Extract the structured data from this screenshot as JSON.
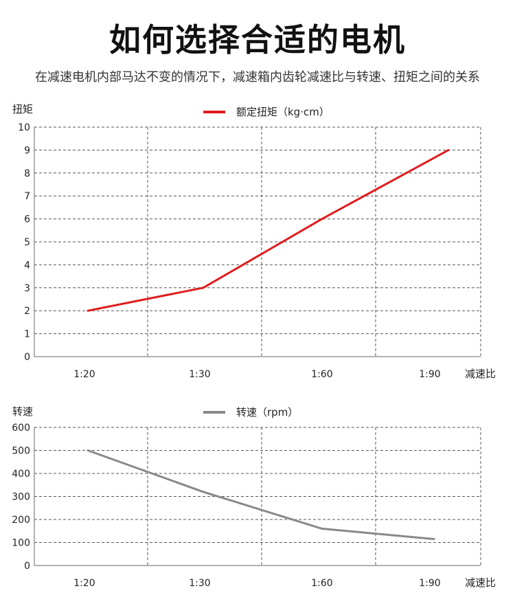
{
  "header": {
    "title": "如何选择合适的电机",
    "subtitle": "在减速电机内部马达不变的情况下，减速箱内齿轮减速比与转速、扭矩之间的关系"
  },
  "chart_data": [
    {
      "type": "line",
      "ylabel": "扭矩",
      "xlabel": "减速比",
      "categories": [
        "1:20",
        "1:30",
        "1:60",
        "1:90"
      ],
      "series": [
        {
          "name": "额定扭矩（kg·cm）",
          "values": [
            2,
            3,
            6,
            9
          ],
          "color": "#e01b1b"
        }
      ],
      "ylim": [
        0,
        10
      ],
      "yticks": [
        "0",
        "1",
        "2",
        "3",
        "4",
        "5",
        "6",
        "7",
        "8",
        "9",
        "10"
      ],
      "legend": "top-center",
      "grid": true
    },
    {
      "type": "line",
      "ylabel": "转速",
      "xlabel": "减速比",
      "categories": [
        "1:20",
        "1:30",
        "1:60",
        "1:90"
      ],
      "series": [
        {
          "name": "转速（rpm）",
          "values": [
            500,
            320,
            160,
            115
          ],
          "color": "#888888"
        }
      ],
      "ylim": [
        0,
        600
      ],
      "yticks": [
        "0",
        "100",
        "200",
        "300",
        "400",
        "500",
        "600"
      ],
      "legend": "top-center",
      "grid": true
    }
  ]
}
